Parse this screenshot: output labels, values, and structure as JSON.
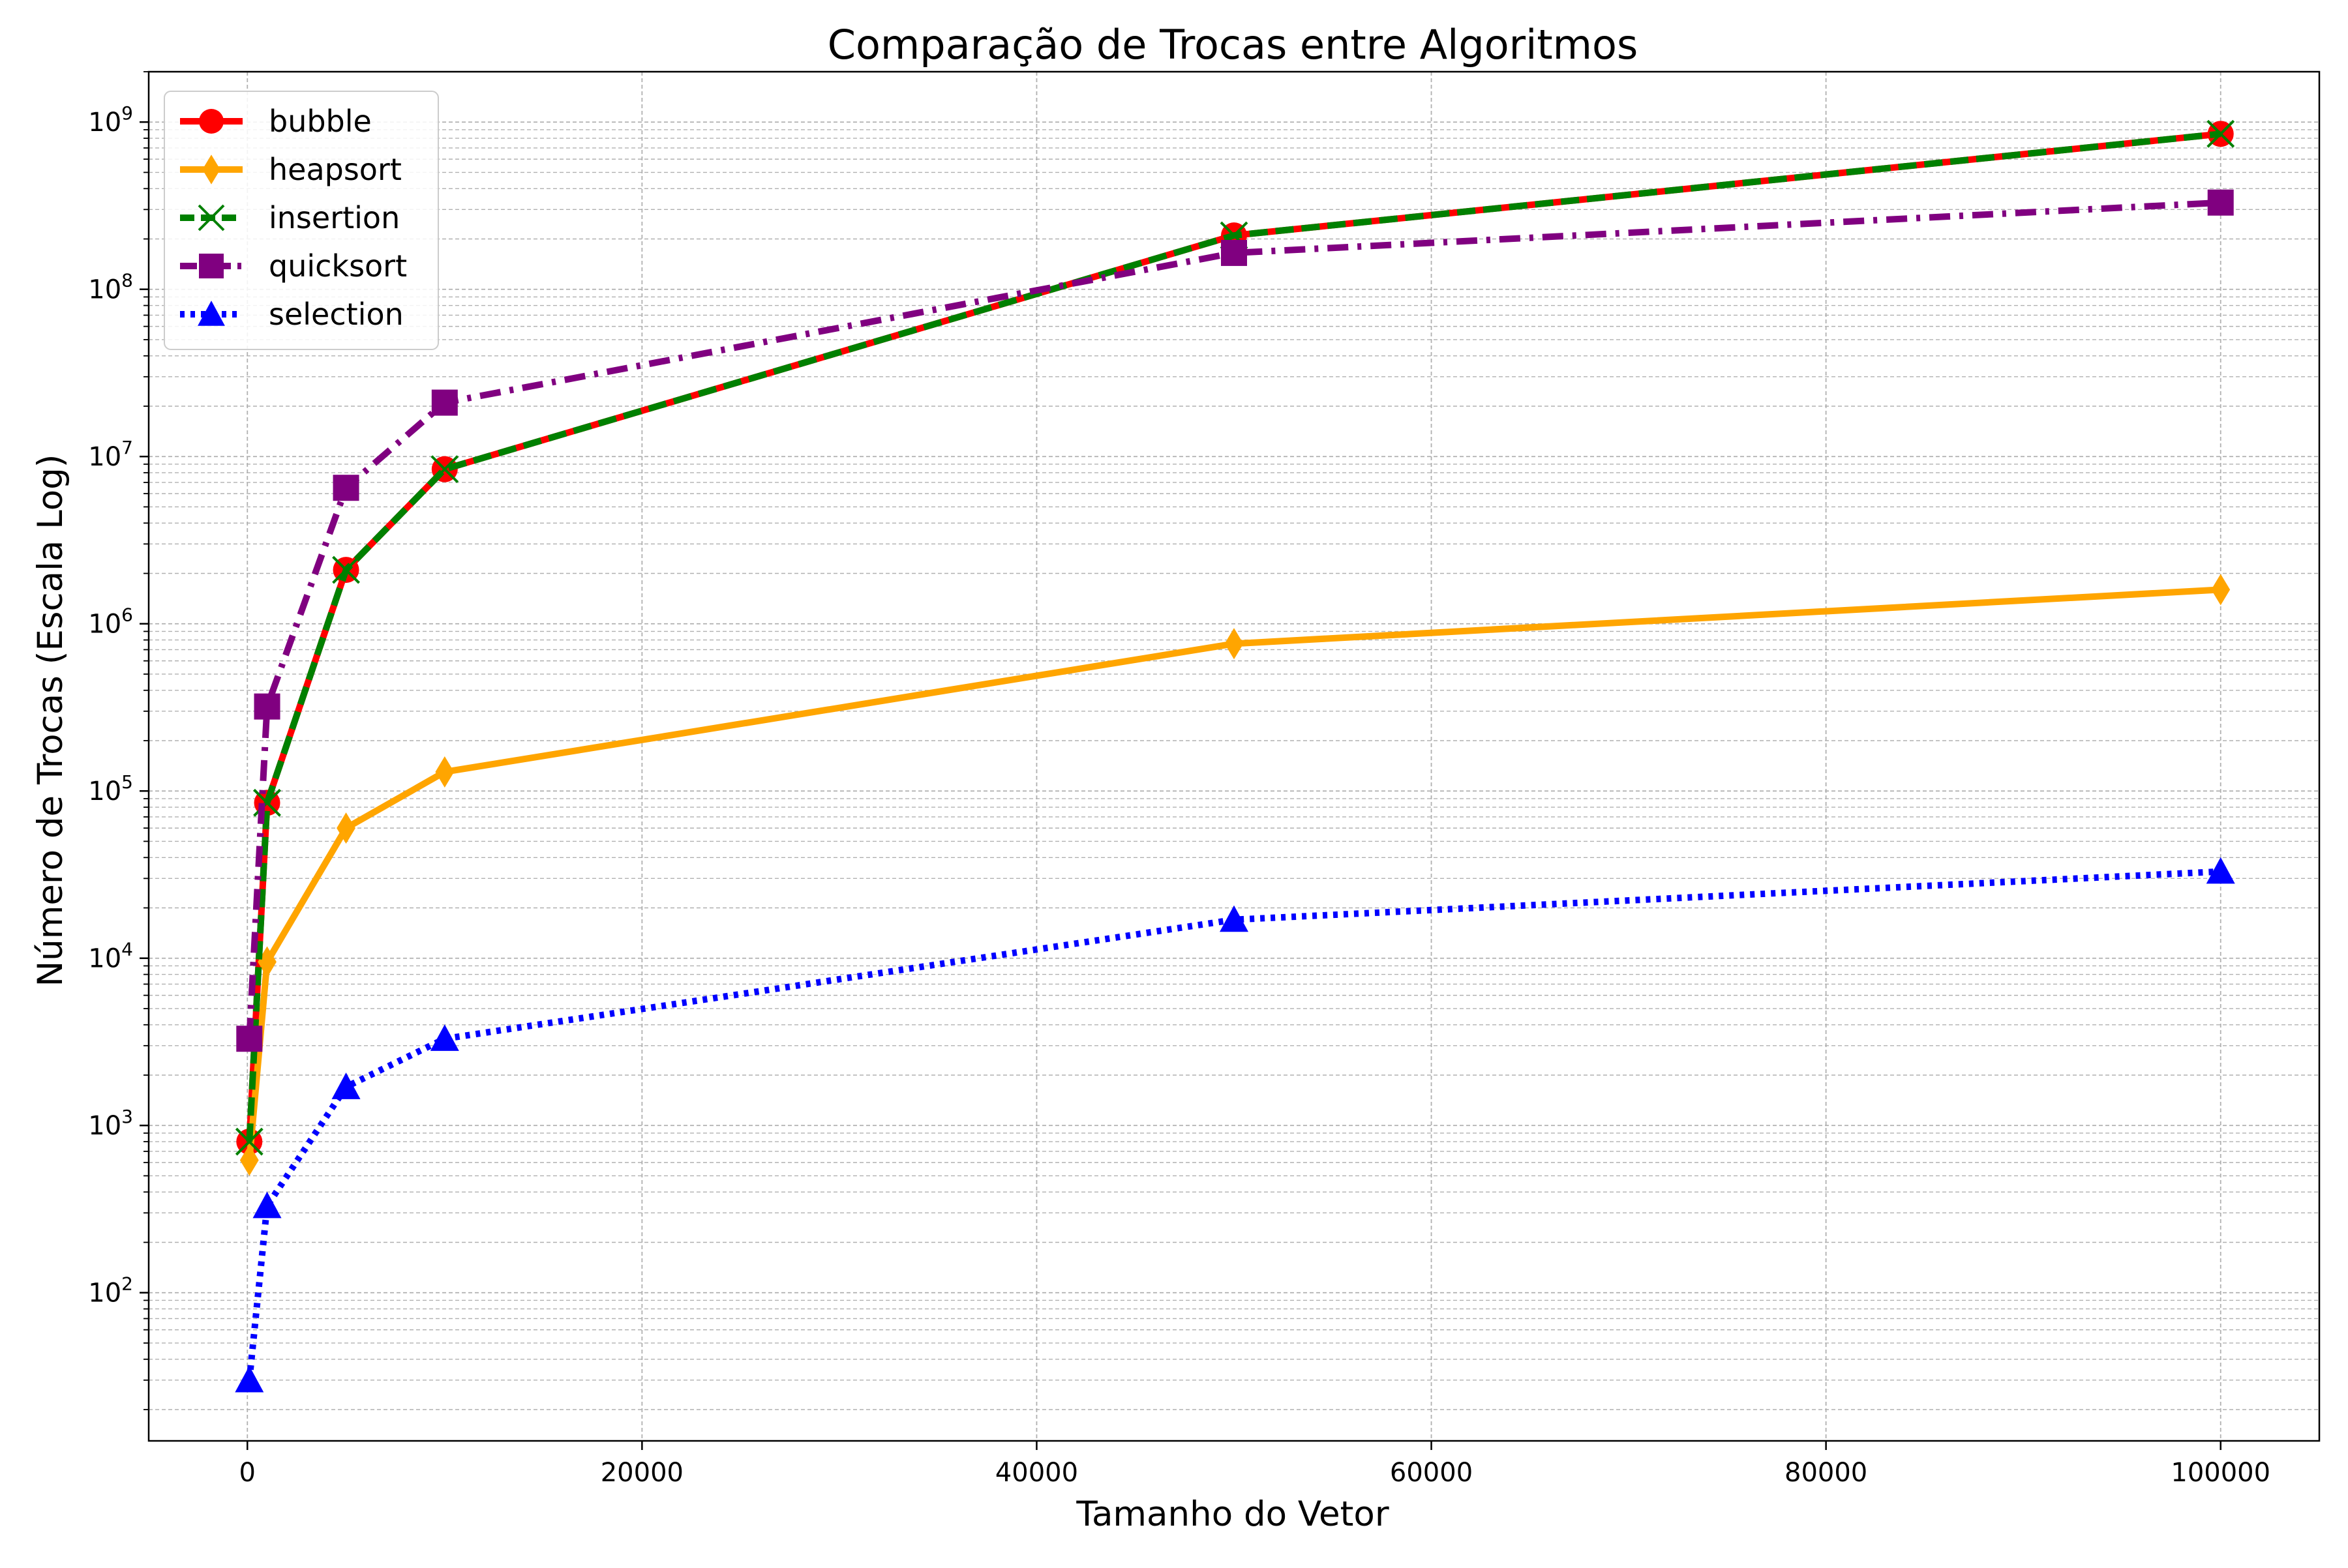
{
  "chart_data": {
    "type": "line",
    "title": "Comparação de Trocas entre Algoritmos",
    "xlabel": "Tamanho do Vetor",
    "ylabel": "Número de Trocas (Escala Log)",
    "xlim": [
      -5000,
      105000
    ],
    "ylim": [
      13,
      2000000000
    ],
    "yscale": "log",
    "grid": true,
    "legend_position": "top-left",
    "x_ticks": [
      0,
      20000,
      40000,
      60000,
      80000,
      100000
    ],
    "x_tick_labels": [
      "0",
      "20000",
      "40000",
      "60000",
      "80000",
      "100000"
    ],
    "y_tick_labels": [
      {
        "base": "10",
        "exp": "2"
      },
      {
        "base": "10",
        "exp": "3"
      },
      {
        "base": "10",
        "exp": "4"
      },
      {
        "base": "10",
        "exp": "5"
      },
      {
        "base": "10",
        "exp": "6"
      },
      {
        "base": "10",
        "exp": "7"
      },
      {
        "base": "10",
        "exp": "8"
      },
      {
        "base": "10",
        "exp": "9"
      }
    ],
    "x": [
      100,
      1000,
      5000,
      10000,
      50000,
      100000
    ],
    "series": [
      {
        "name": "bubble",
        "color": "#ff0000",
        "marker": "circle",
        "linestyle": "solid",
        "values": [
          800,
          85000,
          2100000,
          8400000,
          210000000,
          850000000
        ]
      },
      {
        "name": "heapsort",
        "color": "#ffa500",
        "marker": "diamond",
        "linestyle": "solid",
        "values": [
          620,
          9500,
          60000,
          130000,
          760000,
          1600000
        ]
      },
      {
        "name": "insertion",
        "color": "#008000",
        "marker": "x",
        "linestyle": "dashed",
        "values": [
          800,
          85000,
          2100000,
          8400000,
          210000000,
          850000000
        ]
      },
      {
        "name": "quicksort",
        "color": "#800080",
        "marker": "square",
        "linestyle": "dashdot",
        "values": [
          3300,
          320000,
          6500000,
          21000000,
          165000000,
          330000000
        ]
      },
      {
        "name": "selection",
        "color": "#0000ff",
        "marker": "triangle",
        "linestyle": "dotted",
        "values": [
          30,
          330,
          1700,
          3300,
          17000,
          33000
        ]
      }
    ]
  }
}
